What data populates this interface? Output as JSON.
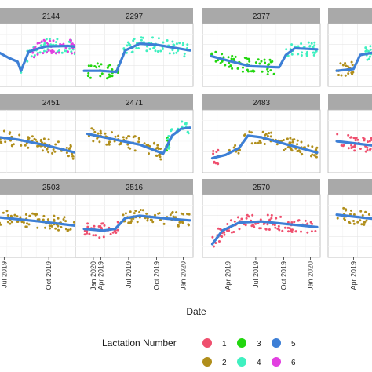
{
  "chart_data": {
    "type": "scatter",
    "xlabel": "Date",
    "ylabel": "",
    "grid": true,
    "legend_position": "bottom",
    "legend_title": "Lactation Number",
    "legend_entries": [
      {
        "label": "1",
        "color": "#ef4f6e"
      },
      {
        "label": "2",
        "color": "#b08e1b"
      },
      {
        "label": "3",
        "color": "#22d60f"
      },
      {
        "label": "4",
        "color": "#3ff0c0"
      },
      {
        "label": "5",
        "color": "#3d7fd6"
      },
      {
        "label": "6",
        "color": "#e23fe0"
      }
    ],
    "x_tick_labels": {
      "col1": [
        "Jul 2019",
        "Oct 2019",
        "Jan 2020"
      ],
      "other": [
        "Apr 2019",
        "Jul 2019",
        "Oct 2019",
        "Jan 2020"
      ]
    },
    "panels": [
      {
        "label": "2144",
        "row": 0,
        "col": 0,
        "segments": [
          {
            "lac": 4,
            "from": 0.22,
            "to": 1.0
          },
          {
            "lac": 6,
            "from": 0.32,
            "to": 0.95
          }
        ],
        "curve": [
          [
            0.0,
            0.42
          ],
          [
            0.12,
            0.55
          ],
          [
            0.2,
            0.62
          ],
          [
            0.23,
            0.78
          ],
          [
            0.3,
            0.44
          ],
          [
            0.45,
            0.35
          ],
          [
            0.65,
            0.34
          ],
          [
            0.85,
            0.38
          ],
          [
            1.0,
            0.42
          ]
        ]
      },
      {
        "label": "2297",
        "row": 0,
        "col": 1,
        "segments": [
          {
            "lac": 3,
            "from": 0.08,
            "to": 0.36
          },
          {
            "lac": 4,
            "from": 0.4,
            "to": 1.0
          }
        ],
        "curve": [
          [
            0.05,
            0.78
          ],
          [
            0.2,
            0.78
          ],
          [
            0.34,
            0.8
          ],
          [
            0.42,
            0.42
          ],
          [
            0.55,
            0.3
          ],
          [
            0.7,
            0.32
          ],
          [
            0.85,
            0.37
          ],
          [
            1.0,
            0.42
          ]
        ]
      },
      {
        "label": "2377",
        "row": 0,
        "col": 2,
        "segments": [
          {
            "lac": 3,
            "from": 0.05,
            "to": 0.62
          },
          {
            "lac": 4,
            "from": 0.7,
            "to": 1.0
          }
        ],
        "curve": [
          [
            0.05,
            0.52
          ],
          [
            0.2,
            0.6
          ],
          [
            0.4,
            0.7
          ],
          [
            0.66,
            0.72
          ],
          [
            0.72,
            0.5
          ],
          [
            0.8,
            0.38
          ],
          [
            1.0,
            0.4
          ]
        ]
      },
      {
        "label": "",
        "row": 0,
        "col": 3,
        "segments": [
          {
            "lac": 2,
            "from": 0.05,
            "to": 0.2
          },
          {
            "lac": 4,
            "from": 0.3,
            "to": 1.0
          }
        ],
        "curve": [
          [
            0.05,
            0.78
          ],
          [
            0.2,
            0.75
          ],
          [
            0.26,
            0.5
          ],
          [
            0.4,
            0.45
          ],
          [
            1.0,
            0.45
          ]
        ]
      },
      {
        "label": "2451",
        "row": 1,
        "col": 0,
        "segments": [
          {
            "lac": 2,
            "from": 0.0,
            "to": 0.72
          },
          {
            "lac": 4,
            "from": 0.78,
            "to": 1.0
          }
        ],
        "curve": [
          [
            0.0,
            0.42
          ],
          [
            0.2,
            0.47
          ],
          [
            0.45,
            0.57
          ],
          [
            0.72,
            0.7
          ],
          [
            0.8,
            0.45
          ],
          [
            0.92,
            0.32
          ],
          [
            1.0,
            0.28
          ]
        ]
      },
      {
        "label": "2471",
        "row": 1,
        "col": 1,
        "segments": [
          {
            "lac": 2,
            "from": 0.08,
            "to": 0.76
          },
          {
            "lac": 3,
            "from": 0.78,
            "to": 0.82
          },
          {
            "lac": 4,
            "from": 0.8,
            "to": 1.0
          }
        ],
        "curve": [
          [
            0.08,
            0.37
          ],
          [
            0.3,
            0.46
          ],
          [
            0.55,
            0.56
          ],
          [
            0.76,
            0.72
          ],
          [
            0.84,
            0.4
          ],
          [
            0.92,
            0.28
          ],
          [
            1.0,
            0.26
          ]
        ]
      },
      {
        "label": "2483",
        "row": 1,
        "col": 2,
        "segments": [
          {
            "lac": 1,
            "from": 0.06,
            "to": 0.12
          },
          {
            "lac": 2,
            "from": 0.2,
            "to": 1.0
          }
        ],
        "curve": [
          [
            0.06,
            0.8
          ],
          [
            0.18,
            0.74
          ],
          [
            0.3,
            0.62
          ],
          [
            0.38,
            0.4
          ],
          [
            0.5,
            0.43
          ],
          [
            0.7,
            0.54
          ],
          [
            1.0,
            0.7
          ]
        ]
      },
      {
        "label": "",
        "row": 1,
        "col": 3,
        "segments": [
          {
            "lac": 1,
            "from": 0.05,
            "to": 1.0
          }
        ],
        "curve": [
          [
            0.05,
            0.5
          ],
          [
            0.4,
            0.58
          ],
          [
            1.0,
            0.68
          ]
        ]
      },
      {
        "label": "2503",
        "row": 2,
        "col": 0,
        "segments": [
          {
            "lac": 2,
            "from": 0.0,
            "to": 1.0
          }
        ],
        "curve": [
          [
            0.0,
            0.34
          ],
          [
            0.4,
            0.42
          ],
          [
            0.75,
            0.5
          ],
          [
            1.0,
            0.55
          ]
        ]
      },
      {
        "label": "2516",
        "row": 2,
        "col": 1,
        "segments": [
          {
            "lac": 1,
            "from": 0.05,
            "to": 0.36
          },
          {
            "lac": 2,
            "from": 0.4,
            "to": 1.0
          }
        ],
        "curve": [
          [
            0.05,
            0.55
          ],
          [
            0.22,
            0.58
          ],
          [
            0.33,
            0.55
          ],
          [
            0.42,
            0.36
          ],
          [
            0.55,
            0.32
          ],
          [
            0.8,
            0.37
          ],
          [
            1.0,
            0.4
          ]
        ]
      },
      {
        "label": "2570",
        "row": 2,
        "col": 2,
        "segments": [
          {
            "lac": 1,
            "from": 0.06,
            "to": 1.0
          }
        ],
        "curve": [
          [
            0.06,
            0.82
          ],
          [
            0.15,
            0.58
          ],
          [
            0.3,
            0.44
          ],
          [
            0.5,
            0.42
          ],
          [
            0.75,
            0.47
          ],
          [
            1.0,
            0.52
          ]
        ]
      },
      {
        "label": "",
        "row": 2,
        "col": 3,
        "segments": [
          {
            "lac": 2,
            "from": 0.05,
            "to": 1.0
          }
        ],
        "curve": [
          [
            0.05,
            0.3
          ],
          [
            0.5,
            0.4
          ],
          [
            1.0,
            0.45
          ]
        ]
      }
    ]
  }
}
